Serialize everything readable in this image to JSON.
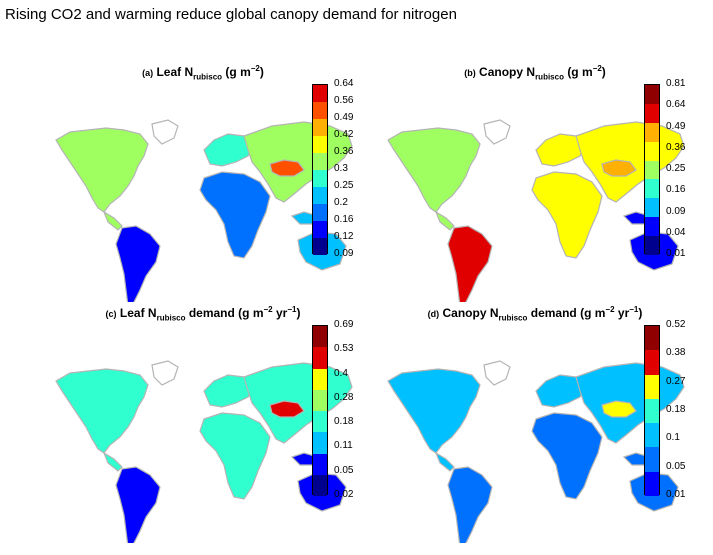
{
  "title": "Rising CO2 and warming reduce global canopy demand for nitrogen",
  "map_fill": {
    "land_outline": "#b4b4b4",
    "background": "#ffffff"
  },
  "panels": [
    {
      "id": "a",
      "tag": "(a)",
      "label_pre": "Leaf N",
      "label_sub": "rubisco",
      "label_post": "(g m",
      "label_sup": "−2",
      "label_end": ")",
      "colors": [
        "#00008f",
        "#0000ff",
        "#0070ff",
        "#00c0ff",
        "#30ffd0",
        "#a0ff60",
        "#ffff00",
        "#ffb000",
        "#ff5000",
        "#e00000"
      ],
      "ticks": [
        "0.09",
        "0.12",
        "0.16",
        "0.2",
        "0.25",
        "0.3",
        "0.36",
        "0.42",
        "0.49",
        "0.56",
        "0.64"
      ],
      "regions": {
        "na": 5,
        "sa": 1,
        "eu": 4,
        "af": 2,
        "as": 5,
        "tb": 8,
        "au": 3
      }
    },
    {
      "id": "b",
      "tag": "(b)",
      "label_pre": "Canopy N",
      "label_sub": "rubisco",
      "label_post": "(g m",
      "label_sup": "−2",
      "label_end": ")",
      "colors": [
        "#00008f",
        "#0000ff",
        "#00c0ff",
        "#30ffd0",
        "#a0ff60",
        "#ffff00",
        "#ffb000",
        "#e00000",
        "#900000"
      ],
      "ticks": [
        "0.01",
        "0.04",
        "0.09",
        "0.16",
        "0.25",
        "0.36",
        "0.49",
        "0.64",
        "0.81"
      ],
      "regions": {
        "na": 4,
        "sa": 7,
        "eu": 5,
        "af": 5,
        "as": 5,
        "tb": 6,
        "au": 1
      }
    },
    {
      "id": "c",
      "tag": "(c)",
      "label_pre": "Leaf N",
      "label_sub": "rubisco",
      "label_post": "demand (g m",
      "label_sup": "−2",
      "label_end": "yr",
      "label_sup2": "−1",
      "label_end2": ")",
      "colors": [
        "#00008f",
        "#0000ff",
        "#00c0ff",
        "#30ffd0",
        "#a0ff60",
        "#ffff00",
        "#e00000",
        "#900000"
      ],
      "ticks": [
        "0.02",
        "0.05",
        "0.11",
        "0.18",
        "0.28",
        "0.4",
        "0.53",
        "0.69"
      ],
      "regions": {
        "na": 3,
        "sa": 1,
        "eu": 3,
        "af": 3,
        "as": 3,
        "tb": 6,
        "au": 1
      }
    },
    {
      "id": "d",
      "tag": "(d)",
      "label_pre": "Canopy N",
      "label_sub": "rubisco",
      "label_post": "demand (g m",
      "label_sup": "−2",
      "label_end": "yr",
      "label_sup2": "−1",
      "label_end2": ")",
      "colors": [
        "#0000ff",
        "#0070ff",
        "#00c0ff",
        "#30ffd0",
        "#ffff00",
        "#e00000",
        "#900000"
      ],
      "ticks": [
        "0.01",
        "0.05",
        "0.1",
        "0.18",
        "0.27",
        "0.38",
        "0.52"
      ],
      "regions": {
        "na": 2,
        "sa": 1,
        "eu": 2,
        "af": 1,
        "as": 2,
        "tb": 4,
        "au": 1
      }
    }
  ]
}
